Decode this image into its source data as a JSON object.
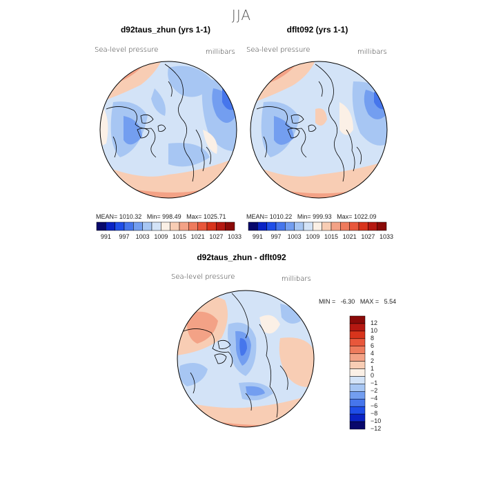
{
  "figure": {
    "season": "JJA"
  },
  "panels": [
    {
      "title": "d92taus_zhun (yrs 1-1)",
      "field": "Sea-level pressure",
      "units": "millibars",
      "stats": {
        "mean_label": "MEAN=",
        "mean": "1010.32",
        "min_label": "Min=",
        "min": "998.49",
        "max_label": "Max=",
        "max": "1025.71"
      }
    },
    {
      "title": "dflt092 (yrs 1-1)",
      "field": "Sea-level pressure",
      "units": "millibars",
      "stats": {
        "mean_label": "MEAN=",
        "mean": "1010.22",
        "min_label": "Min=",
        "min": "999.93",
        "max_label": "Max=",
        "max": "1022.09"
      }
    }
  ],
  "colorbar_horizontal": {
    "labels": [
      "991",
      "997",
      "1003",
      "1009",
      "1015",
      "1021",
      "1027",
      "1033"
    ],
    "colors": [
      "#08086b",
      "#0a23c4",
      "#1f4ee8",
      "#4676ec",
      "#739ef0",
      "#a7c6f3",
      "#d3e3f7",
      "#fbf0e6",
      "#f8cdb4",
      "#f3a286",
      "#ee7b5d",
      "#e8573b",
      "#d8341c",
      "#b51811",
      "#8a0a08"
    ]
  },
  "difference": {
    "title": "d92taus_zhun - dflt092",
    "field": "Sea-level pressure",
    "units": "millibars",
    "stats": {
      "min_label": "MIN =",
      "min": "-6.30",
      "max_label": "MAX =",
      "max": "5.54"
    },
    "colorbar": {
      "labels": [
        "12",
        "10",
        "8",
        "6",
        "4",
        "2",
        "1",
        "0",
        "−1",
        "−2",
        "−4",
        "−6",
        "−8",
        "−10",
        "−12"
      ],
      "colors": [
        "#8a0a08",
        "#b51811",
        "#d8341c",
        "#e8573b",
        "#ee7b5d",
        "#f3a286",
        "#f8cdb4",
        "#fbf0e6",
        "#d3e3f7",
        "#a7c6f3",
        "#739ef0",
        "#4676ec",
        "#1f4ee8",
        "#0a23c4",
        "#08086b"
      ]
    }
  }
}
